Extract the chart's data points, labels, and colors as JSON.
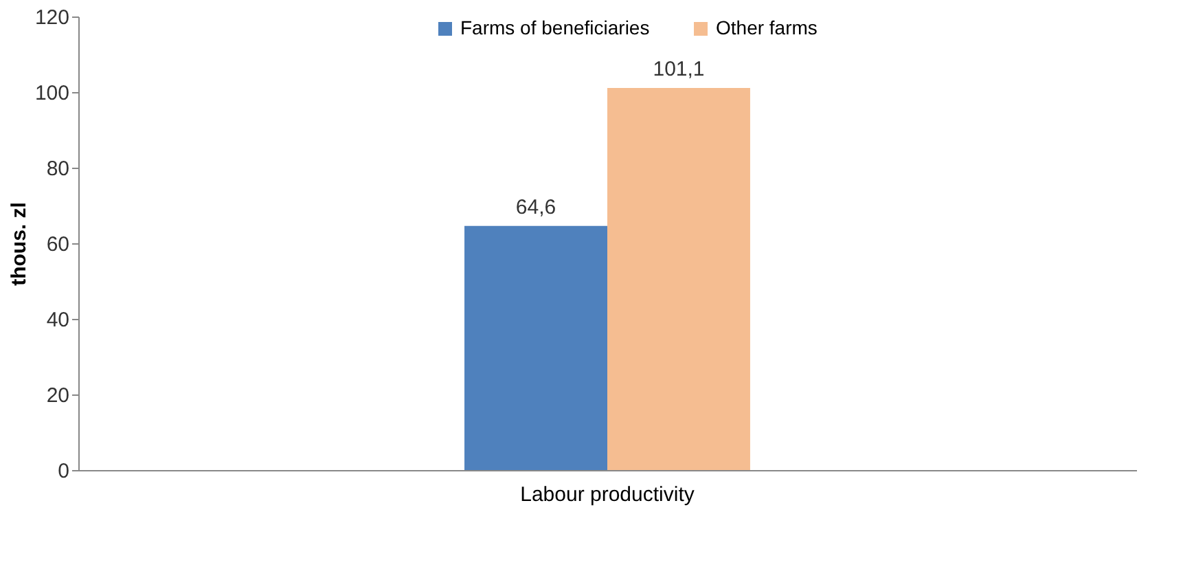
{
  "chart_data": {
    "type": "bar",
    "ylabel": "thous. zl",
    "categories": [
      "Labour productivity"
    ],
    "series": [
      {
        "name": "Farms of beneficiaries",
        "color": "#4f81bd",
        "values": [
          64.6
        ],
        "value_labels": [
          "64,6"
        ]
      },
      {
        "name": "Other farms",
        "color": "#f5bd91",
        "values": [
          101.1
        ],
        "value_labels": [
          "101,1"
        ]
      }
    ],
    "ylim": [
      0,
      120
    ],
    "yticks": [
      0,
      20,
      40,
      60,
      80,
      100,
      120
    ],
    "legend": "top"
  }
}
